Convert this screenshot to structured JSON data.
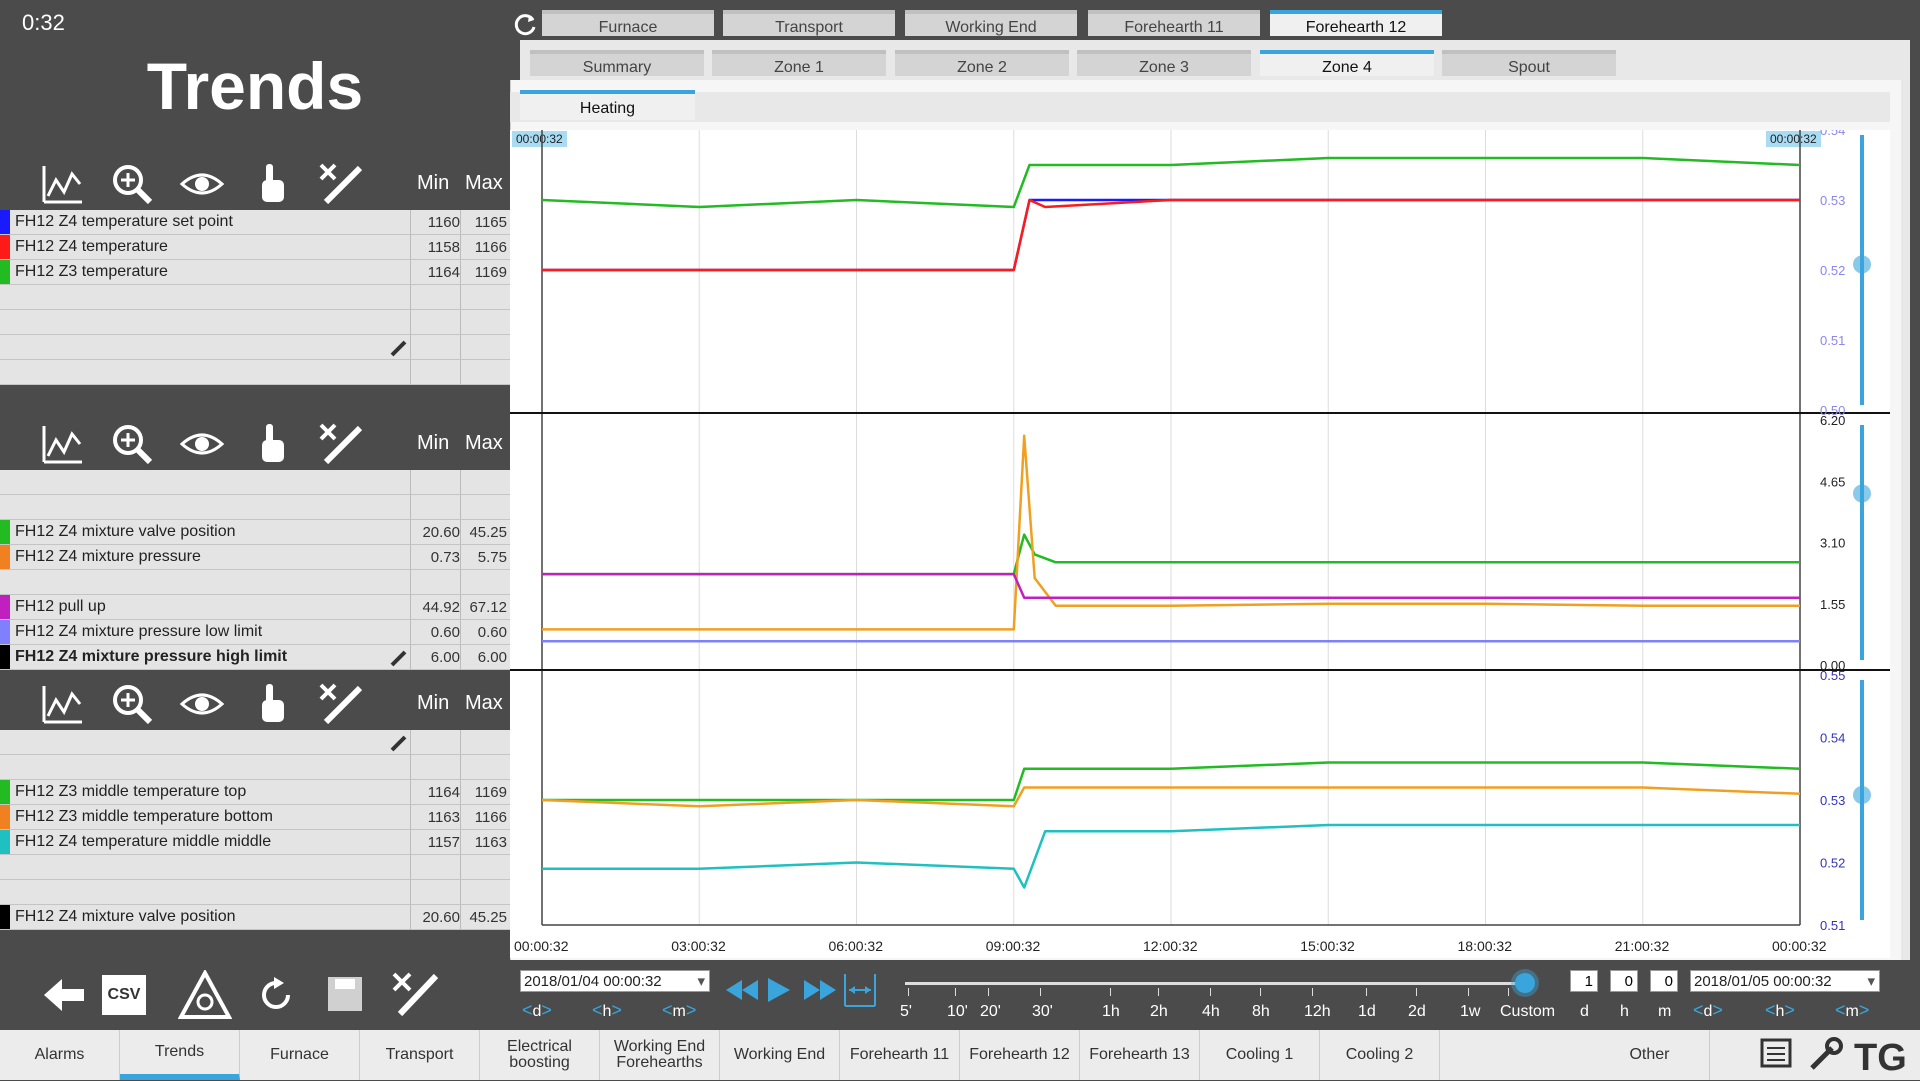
{
  "clock": "0:32",
  "page_title": "Trends",
  "tabs_row1": [
    "Furnace",
    "Transport",
    "Working End",
    "Forehearth 11",
    "Forehearth 12"
  ],
  "tabs_row1_active": "Forehearth 12",
  "tabs_row2": [
    "Summary",
    "Zone 1",
    "Zone 2",
    "Zone 3",
    "Zone 4",
    "Spout"
  ],
  "tabs_row2_active": "Zone 4",
  "tab_row3": "Heating",
  "table_headers": {
    "min": "Min",
    "max": "Max"
  },
  "panels": [
    {
      "rows": [
        {
          "name": "FH12 Z4 temperature set point",
          "min": "1160",
          "max": "1165",
          "color": "#1a1aff"
        },
        {
          "name": "FH12 Z4 temperature",
          "min": "1158",
          "max": "1166",
          "color": "#ff1a1a"
        },
        {
          "name": "FH12 Z3 temperature",
          "min": "1164",
          "max": "1169",
          "color": "#22bb22"
        },
        {
          "name": "",
          "min": "",
          "max": "",
          "color": ""
        },
        {
          "name": "",
          "min": "",
          "max": "",
          "color": ""
        },
        {
          "name": "",
          "min": "",
          "max": "",
          "color": ""
        },
        {
          "name": "",
          "min": "",
          "max": "",
          "color": ""
        }
      ]
    },
    {
      "rows": [
        {
          "name": "",
          "min": "",
          "max": "",
          "color": ""
        },
        {
          "name": "",
          "min": "",
          "max": "",
          "color": ""
        },
        {
          "name": "FH12 Z4 mixture valve position",
          "min": "20.60",
          "max": "45.25",
          "color": "#22bb22"
        },
        {
          "name": "FH12 Z4 mixture pressure",
          "min": "0.73",
          "max": "5.75",
          "color": "#f08020"
        },
        {
          "name": "",
          "min": "",
          "max": "",
          "color": ""
        },
        {
          "name": "FH12 pull up",
          "min": "44.92",
          "max": "67.12",
          "color": "#c020c0"
        },
        {
          "name": "FH12 Z4 mixture pressure low limit",
          "min": "0.60",
          "max": "0.60",
          "color": "#8080ff"
        },
        {
          "name": "FH12 Z4 mixture pressure high limit",
          "min": "6.00",
          "max": "6.00",
          "color": "#000000"
        }
      ]
    },
    {
      "rows": [
        {
          "name": "",
          "min": "",
          "max": "",
          "color": ""
        },
        {
          "name": "",
          "min": "",
          "max": "",
          "color": ""
        },
        {
          "name": "FH12 Z3 middle temperature top",
          "min": "1164",
          "max": "1169",
          "color": "#22bb22"
        },
        {
          "name": "FH12 Z3 middle temperature bottom",
          "min": "1163",
          "max": "1166",
          "color": "#f08020"
        },
        {
          "name": "FH12 Z4 temperature middle middle",
          "min": "1157",
          "max": "1163",
          "color": "#20c0c0"
        },
        {
          "name": "",
          "min": "",
          "max": "",
          "color": ""
        },
        {
          "name": "",
          "min": "",
          "max": "",
          "color": ""
        },
        {
          "name": "FH12 Z4 mixture valve position",
          "min": "20.60",
          "max": "45.25",
          "color": "#000000"
        }
      ]
    }
  ],
  "timestamp_start": "00:00:32",
  "timestamp_end": "00:00:32",
  "x_ticks": [
    "00:00:32",
    "03:00:32",
    "06:00:32",
    "09:00:32",
    "12:00:32",
    "15:00:32",
    "18:00:32",
    "21:00:32",
    "00:00:32"
  ],
  "chart_data": [
    {
      "type": "line",
      "x": [
        0,
        3,
        6,
        9,
        9.3,
        9.6,
        12,
        15,
        18,
        21,
        24
      ],
      "series": [
        {
          "name": "FH12 Z4 temperature set point",
          "values": [
            0.52,
            0.52,
            0.52,
            0.52,
            0.53,
            0.53,
            0.53,
            0.53,
            0.53,
            0.53,
            0.53
          ],
          "color": "#1a1aff"
        },
        {
          "name": "FH12 Z4 temperature",
          "values": [
            0.52,
            0.52,
            0.52,
            0.52,
            0.53,
            0.529,
            0.53,
            0.53,
            0.53,
            0.53,
            0.53
          ],
          "color": "#ff1a1a"
        },
        {
          "name": "FH12 Z3 temperature",
          "values": [
            0.53,
            0.529,
            0.53,
            0.529,
            0.535,
            0.535,
            0.535,
            0.536,
            0.536,
            0.536,
            0.535
          ],
          "color": "#22bb22"
        }
      ],
      "y_ticks": [
        "0.54",
        "0.53",
        "0.52",
        "0.51",
        "0.50"
      ],
      "ylim": [
        0.5,
        0.54
      ]
    },
    {
      "type": "line",
      "x": [
        0,
        3,
        6,
        9,
        9.2,
        9.4,
        9.8,
        12,
        15,
        18,
        21,
        24
      ],
      "series": [
        {
          "name": "FH12 Z4 mixture valve position",
          "values": [
            2.3,
            2.3,
            2.3,
            2.3,
            3.3,
            2.8,
            2.6,
            2.6,
            2.6,
            2.6,
            2.6,
            2.6
          ],
          "color": "#22bb22"
        },
        {
          "name": "FH12 Z4 mixture pressure",
          "values": [
            0.9,
            0.9,
            0.9,
            0.9,
            5.8,
            2.2,
            1.5,
            1.5,
            1.55,
            1.55,
            1.5,
            1.5
          ],
          "color": "#f0a020"
        },
        {
          "name": "FH12 pull up",
          "values": [
            2.3,
            2.3,
            2.3,
            2.3,
            1.7,
            1.7,
            1.7,
            1.7,
            1.7,
            1.7,
            1.7,
            1.7
          ],
          "color": "#c020c0"
        },
        {
          "name": "FH12 Z4 mixture pressure low limit",
          "values": [
            0.6,
            0.6,
            0.6,
            0.6,
            0.6,
            0.6,
            0.6,
            0.6,
            0.6,
            0.6,
            0.6,
            0.6
          ],
          "color": "#8080ff"
        }
      ],
      "y_ticks": [
        "6.20",
        "4.65",
        "3.10",
        "1.55",
        "0.00"
      ],
      "ylim": [
        0,
        6.2
      ]
    },
    {
      "type": "line",
      "x": [
        0,
        3,
        6,
        9,
        9.2,
        9.6,
        12,
        15,
        18,
        21,
        24
      ],
      "series": [
        {
          "name": "FH12 Z3 middle temperature top",
          "values": [
            0.53,
            0.53,
            0.53,
            0.53,
            0.535,
            0.535,
            0.535,
            0.536,
            0.536,
            0.536,
            0.535
          ],
          "color": "#22bb22"
        },
        {
          "name": "FH12 Z3 middle temperature bottom",
          "values": [
            0.53,
            0.529,
            0.53,
            0.529,
            0.532,
            0.532,
            0.532,
            0.532,
            0.532,
            0.532,
            0.531
          ],
          "color": "#f0a020"
        },
        {
          "name": "FH12 Z4 temperature middle middle",
          "values": [
            0.519,
            0.519,
            0.52,
            0.519,
            0.516,
            0.525,
            0.525,
            0.526,
            0.526,
            0.526,
            0.526
          ],
          "color": "#20c0c0"
        }
      ],
      "y_ticks": [
        "0.55",
        "0.54",
        "0.53",
        "0.52",
        "0.51"
      ],
      "ylim": [
        0.51,
        0.55
      ]
    }
  ],
  "date_start": "2018/01/04 00:00:32",
  "date_end": "2018/01/05 00:00:32",
  "step_labels": {
    "d": "d",
    "h": "h",
    "m": "m"
  },
  "num_d": "1",
  "num_h": "0",
  "num_m": "0",
  "unit_labels": [
    "d",
    "h",
    "m"
  ],
  "scale_labels": [
    "5'",
    "10'",
    "20'",
    "30'",
    "1h",
    "2h",
    "4h",
    "8h",
    "12h",
    "1d",
    "2d",
    "1w",
    "Custom"
  ],
  "csv_label": "CSV",
  "nav_items": [
    "Alarms",
    "Trends",
    "Furnace",
    "Transport",
    "Electrical boosting",
    "Working End Forehearths",
    "Working End",
    "Forehearth 11",
    "Forehearth 12",
    "Forehearth 13",
    "Cooling 1",
    "Cooling 2",
    "Other"
  ],
  "nav_active": "Trends"
}
